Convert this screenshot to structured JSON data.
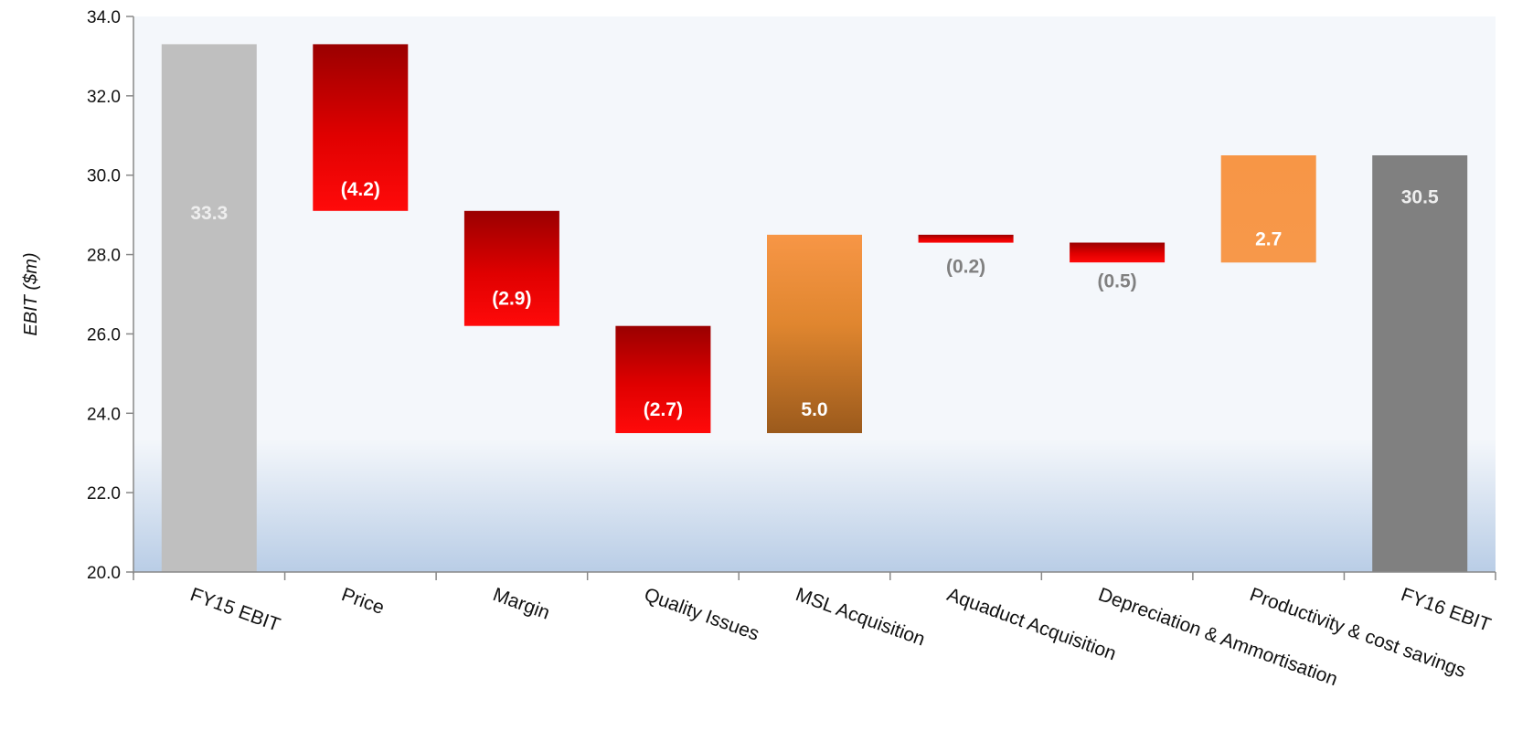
{
  "chart_data": {
    "type": "bar",
    "subtype": "waterfall",
    "title": "",
    "xlabel": "",
    "ylabel": "EBIT ($m)",
    "ylim": [
      20,
      34
    ],
    "yticks": [
      "20.0",
      "22.0",
      "24.0",
      "26.0",
      "28.0",
      "30.0",
      "32.0",
      "34.0"
    ],
    "grid": false,
    "legend": "none",
    "categories": [
      "FY15 EBIT",
      "Price",
      "Margin",
      "Quality Issues",
      "MSL Acquisition",
      "Aquaduct Acquisition",
      "Depreciation & Ammortisation",
      "Productivity & cost savings",
      "FY16 EBIT"
    ],
    "bars": [
      {
        "kind": "total",
        "start": 20.0,
        "end": 33.3,
        "label": "33.3",
        "fill": "#bfbfbf",
        "label_color": "#eeeeee"
      },
      {
        "kind": "decrease",
        "start": 33.3,
        "end": 29.1,
        "label": "(4.2)",
        "fill": "red",
        "label_color": "#ffffff"
      },
      {
        "kind": "decrease",
        "start": 29.1,
        "end": 26.2,
        "label": "(2.9)",
        "fill": "red",
        "label_color": "#ffffff"
      },
      {
        "kind": "decrease",
        "start": 26.2,
        "end": 23.5,
        "label": "(2.7)",
        "fill": "red",
        "label_color": "#ffffff"
      },
      {
        "kind": "increase",
        "start": 23.5,
        "end": 28.5,
        "label": "5.0",
        "fill": "brown",
        "label_color": "#ffffff"
      },
      {
        "kind": "decrease",
        "start": 28.5,
        "end": 28.3,
        "label": "(0.2)",
        "fill": "red",
        "label_color": "#808080"
      },
      {
        "kind": "decrease",
        "start": 28.3,
        "end": 27.8,
        "label": "(0.5)",
        "fill": "red",
        "label_color": "#808080"
      },
      {
        "kind": "increase",
        "start": 27.8,
        "end": 30.5,
        "label": "2.7",
        "fill": "orange",
        "label_color": "#ffffff"
      },
      {
        "kind": "total",
        "start": 20.0,
        "end": 30.5,
        "label": "30.5",
        "fill": "#808080",
        "label_color": "#eeeeee"
      }
    ],
    "colors": {
      "total_start": "#bfbfbf",
      "total_end": "#808080",
      "decrease_top": "#9a0000",
      "decrease_bottom": "#ff0000",
      "increase_orange": "#f79646",
      "increase_brown": "#9b5a1c",
      "plot_bg_top": "#f4f7fb",
      "plot_bg_bottom": "#b9cde6"
    }
  }
}
